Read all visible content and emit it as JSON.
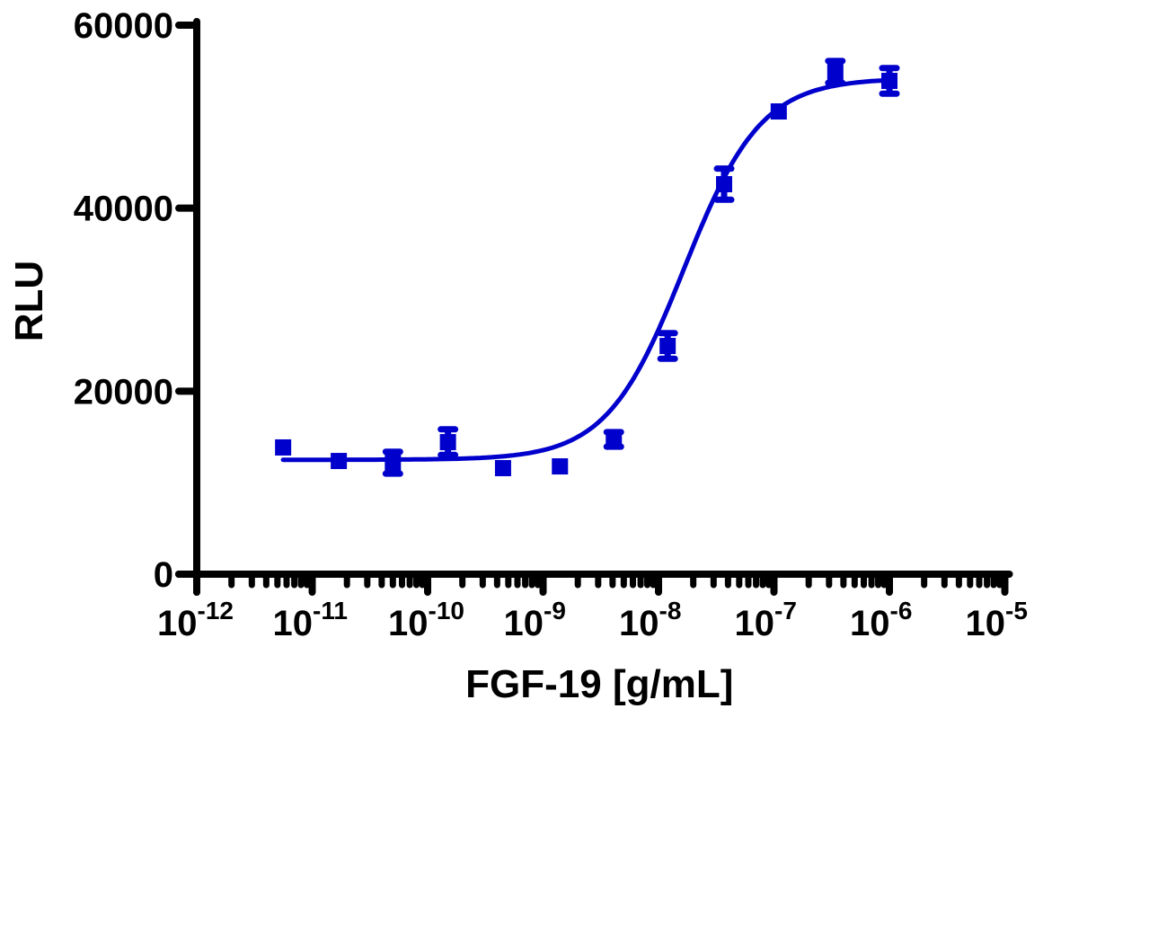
{
  "chart_data": {
    "type": "scatter",
    "title": "",
    "xlabel": "FGF-19 [g/mL]",
    "ylabel": "RLU",
    "xscale": "log",
    "xlim": [
      1e-12,
      1e-05
    ],
    "ylim": [
      0,
      60000
    ],
    "x_tick_labels": [
      "10-12",
      "10-11",
      "10-10",
      "10-9",
      "10-8",
      "10-7",
      "10-6",
      "10-5"
    ],
    "x_tick_exponents": [
      -12,
      -11,
      -10,
      -9,
      -8,
      -7,
      -6,
      -5
    ],
    "y_tick_labels": [
      "0",
      "20000",
      "40000",
      "60000"
    ],
    "y_ticks": [
      0,
      20000,
      40000,
      60000
    ],
    "grid": false,
    "legend": null,
    "series": [
      {
        "name": "FGF-19",
        "color": "#0000CC",
        "marker": "square",
        "x": [
          5.6e-12,
          1.7e-11,
          5e-11,
          1.5e-10,
          4.5e-10,
          1.4e-09,
          4.1e-09,
          1.2e-08,
          3.7e-08,
          1.1e-07,
          3.4e-07,
          1e-06
        ],
        "y": [
          13850,
          12370,
          12180,
          14430,
          11590,
          11780,
          14730,
          24940,
          42620,
          50570,
          54890,
          53910
        ],
        "error": [
          0,
          0,
          1200,
          1400,
          0,
          0,
          800,
          1400,
          1700,
          0,
          1200,
          1400
        ]
      }
    ],
    "fit": {
      "type": "4PL sigmoid",
      "bottom": 12500,
      "top": 54200,
      "logEC50": -7.78,
      "hill": 1.3,
      "x_range": [
        5.6e-12,
        1e-06
      ]
    }
  }
}
